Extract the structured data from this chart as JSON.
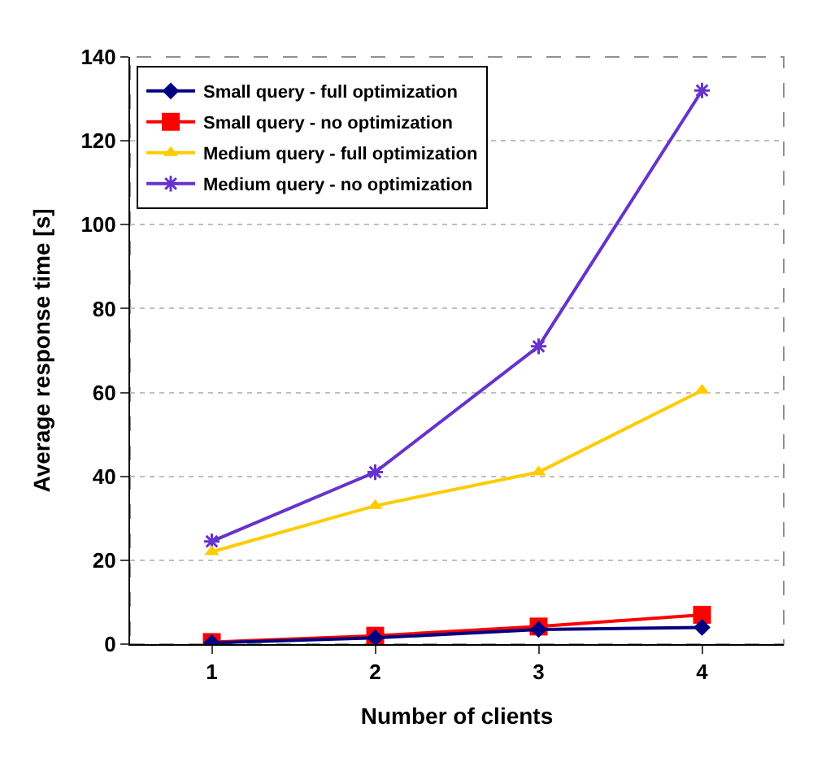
{
  "chart_data": {
    "type": "line",
    "xlabel": "Number of clients",
    "ylabel": "Average response time [s]",
    "categories": [
      "1",
      "2",
      "3",
      "4"
    ],
    "series": [
      {
        "name": "Small query - full optimization",
        "color": "#000080",
        "marker": "diamond",
        "values": [
          0.3,
          1.5,
          3.5,
          4
        ]
      },
      {
        "name": "Small query - no optimization",
        "color": "#ff0000",
        "marker": "square",
        "values": [
          0.5,
          2,
          4.2,
          7
        ]
      },
      {
        "name": "Medium query - full optimization",
        "color": "#ffcc00",
        "marker": "triangle",
        "values": [
          22,
          33,
          41,
          60.5
        ]
      },
      {
        "name": "Medium query - no optimization",
        "color": "#6633cc",
        "marker": "cross",
        "values": [
          24.5,
          41,
          71,
          132
        ]
      }
    ],
    "ylim": [
      0,
      140
    ],
    "yticks": [
      0,
      20,
      40,
      60,
      80,
      100,
      120,
      140
    ],
    "grid": "y",
    "legend": "top left",
    "line_style": "solid"
  }
}
